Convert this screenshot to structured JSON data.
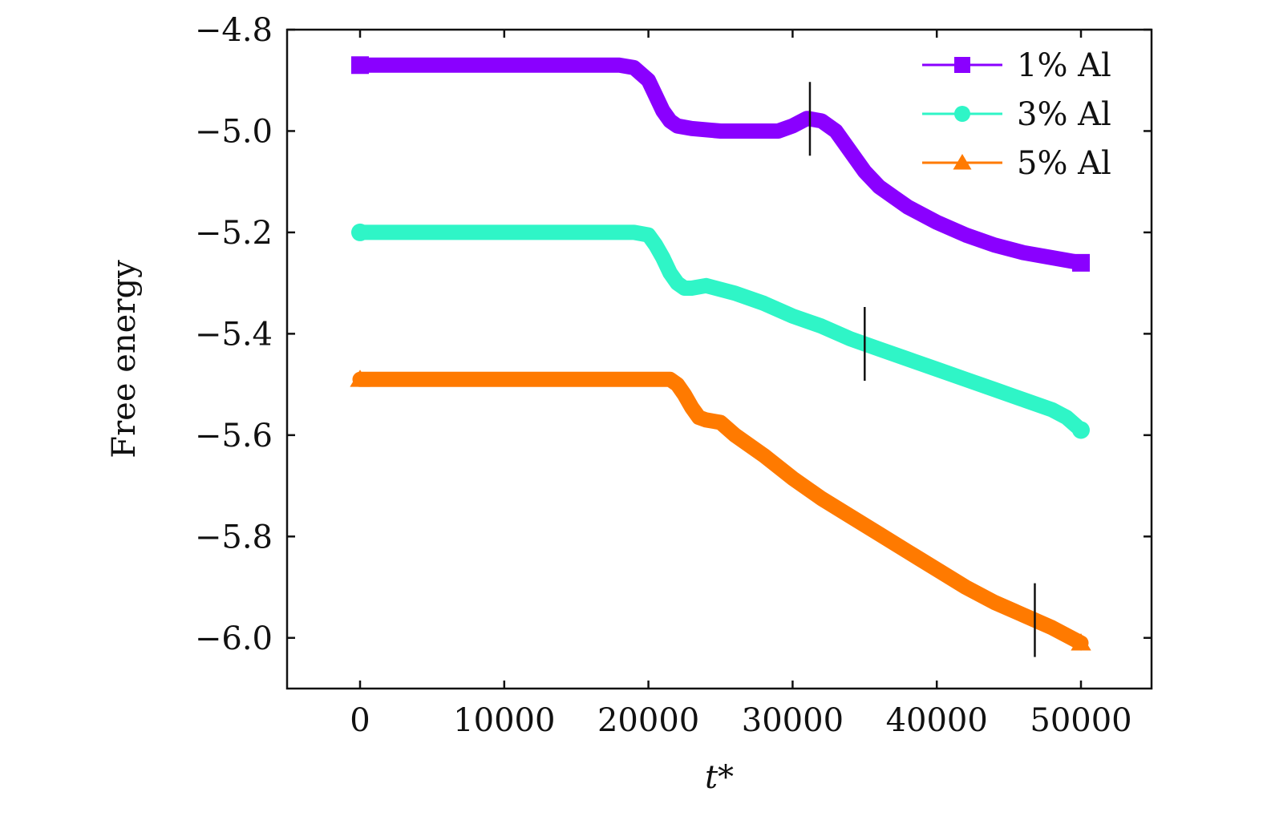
{
  "chart_data": {
    "type": "line",
    "title": "",
    "xlabel": "t*",
    "ylabel": "Free energy",
    "xlim": [
      -5000,
      55000
    ],
    "ylim": [
      -6.1,
      -4.8
    ],
    "xticks": [
      0,
      10000,
      20000,
      30000,
      40000,
      50000
    ],
    "xtick_labels": [
      "0",
      "10000",
      "20000",
      "30000",
      "40000",
      "50000"
    ],
    "yticks": [
      -4.8,
      -5.0,
      -5.2,
      -5.4,
      -5.6,
      -5.8,
      -6.0
    ],
    "ytick_labels": [
      "−4.8",
      "−5.0",
      "−5.2",
      "−5.4",
      "−5.6",
      "−5.8",
      "−6.0"
    ],
    "grid": false,
    "legend_position": "top-right",
    "series": [
      {
        "name": "1% Al",
        "color": "#8a00ff",
        "marker": "square",
        "x": [
          0,
          5000,
          10000,
          15000,
          18000,
          19000,
          20000,
          20500,
          21000,
          21500,
          22000,
          23000,
          25000,
          27000,
          29000,
          30000,
          31000,
          32000,
          33000,
          34000,
          35000,
          36000,
          37000,
          38000,
          40000,
          42000,
          44000,
          46000,
          48000,
          50000
        ],
        "y": [
          -4.87,
          -4.87,
          -4.87,
          -4.87,
          -4.87,
          -4.875,
          -4.9,
          -4.93,
          -4.96,
          -4.98,
          -4.99,
          -4.995,
          -5.0,
          -5.0,
          -5.0,
          -4.99,
          -4.975,
          -4.98,
          -5.0,
          -5.04,
          -5.08,
          -5.11,
          -5.13,
          -5.15,
          -5.18,
          -5.205,
          -5.225,
          -5.24,
          -5.25,
          -5.26
        ],
        "marker_line_x": 31200
      },
      {
        "name": "3% Al",
        "color": "#2ff5c7",
        "marker": "circle",
        "x": [
          0,
          5000,
          10000,
          15000,
          19000,
          20000,
          20500,
          21000,
          21500,
          22000,
          22500,
          23000,
          24000,
          26000,
          28000,
          30000,
          32000,
          34000,
          36000,
          38000,
          40000,
          42000,
          44000,
          46000,
          48000,
          49000,
          50000
        ],
        "y": [
          -5.2,
          -5.2,
          -5.2,
          -5.2,
          -5.2,
          -5.205,
          -5.225,
          -5.25,
          -5.28,
          -5.3,
          -5.31,
          -5.31,
          -5.305,
          -5.32,
          -5.34,
          -5.365,
          -5.385,
          -5.41,
          -5.43,
          -5.45,
          -5.47,
          -5.49,
          -5.51,
          -5.53,
          -5.55,
          -5.565,
          -5.59
        ],
        "marker_line_x": 35000
      },
      {
        "name": "5% Al",
        "color": "#ff7a00",
        "marker": "triangle",
        "x": [
          0,
          5000,
          10000,
          15000,
          20000,
          21500,
          22000,
          22500,
          23000,
          23500,
          24000,
          25000,
          26000,
          28000,
          30000,
          32000,
          34000,
          36000,
          38000,
          40000,
          42000,
          44000,
          46000,
          48000,
          50000
        ],
        "y": [
          -5.49,
          -5.49,
          -5.49,
          -5.49,
          -5.49,
          -5.49,
          -5.5,
          -5.52,
          -5.545,
          -5.565,
          -5.57,
          -5.575,
          -5.6,
          -5.64,
          -5.685,
          -5.725,
          -5.76,
          -5.795,
          -5.83,
          -5.865,
          -5.9,
          -5.93,
          -5.955,
          -5.98,
          -6.01
        ],
        "marker_line_x": 46800
      }
    ]
  }
}
